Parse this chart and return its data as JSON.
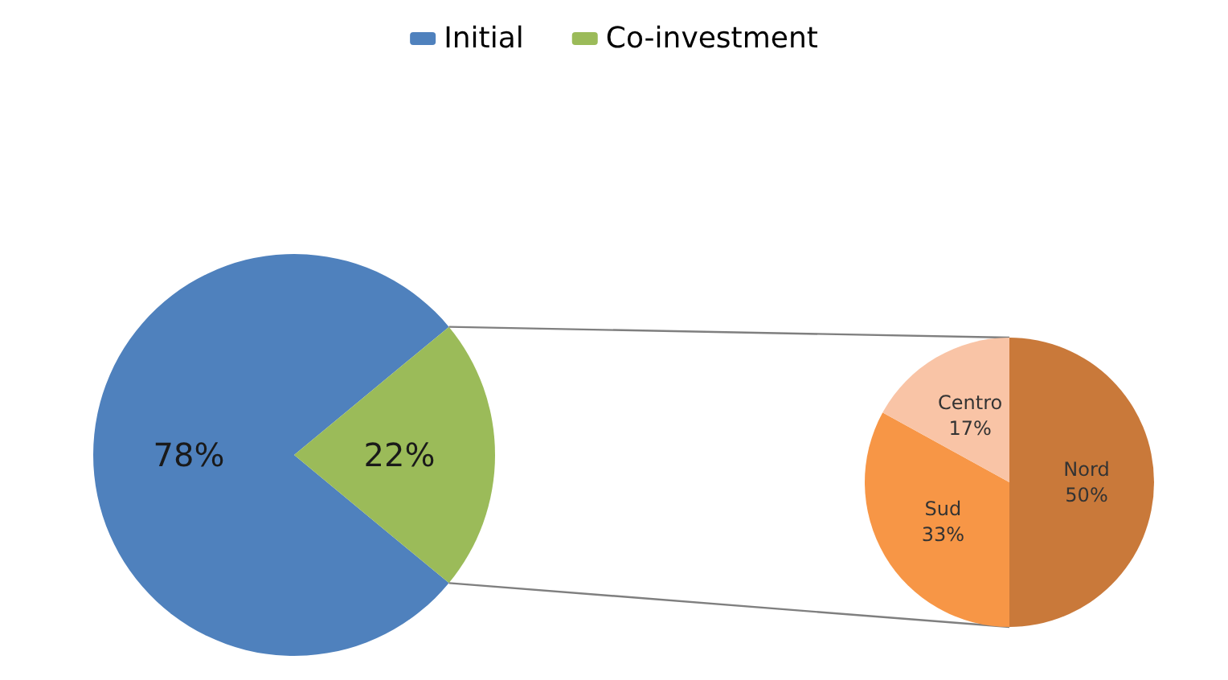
{
  "chart_data": [
    {
      "type": "pie",
      "categories": [
        "Initial",
        "Co-investment"
      ],
      "values": [
        78,
        22
      ],
      "colors": [
        "#4f81bd",
        "#9bbb59"
      ],
      "value_labels": [
        "78%",
        "22%"
      ],
      "legend": "top"
    },
    {
      "type": "pie",
      "categories": [
        "Nord",
        "Sud",
        "Centro"
      ],
      "values": [
        50,
        33,
        17
      ],
      "colors": [
        "#c9793a",
        "#f79646",
        "#f9c4a6"
      ],
      "value_labels": [
        "50%",
        "33%",
        "17%"
      ]
    }
  ]
}
